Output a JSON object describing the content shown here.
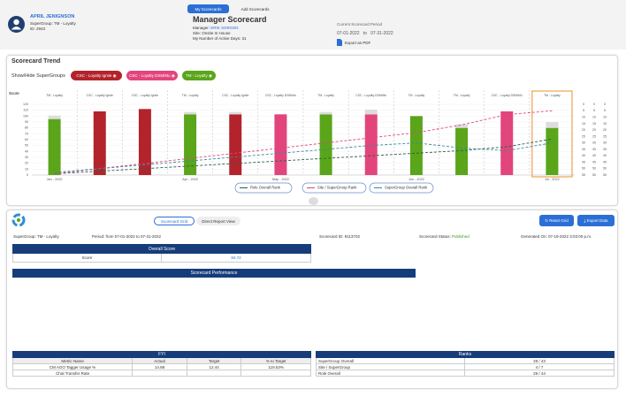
{
  "tabs": [
    "My Scorecards",
    "Add Scorecards"
  ],
  "user": {
    "name": "APRIL JENIGNSON",
    "supergroup": "SuperGroup: TM - Loyalty",
    "id": "ID: 2943"
  },
  "scorecard": {
    "title": "Manager Scorecard",
    "manager_label": "Manager:",
    "manager": "ERIK SORSON",
    "site": "Site: Onsite In House",
    "active_days": "My Number of Active Days: 31"
  },
  "period": {
    "label": "Current Scorecard Period",
    "start": "07-01-2022",
    "to": "to",
    "end": "07-31-2022",
    "export": "Export as PDF"
  },
  "trend": {
    "title": "Scorecard Trend",
    "toggle_label": "Show/Hide SuperGroups",
    "chart": {
      "type": "bar",
      "y_label": "Score",
      "categories": [
        "Jan - 2022",
        null,
        null,
        "Apr - 2022",
        null,
        "May - 2022",
        null,
        null,
        "Jun - 2022",
        null,
        null,
        "Jul - 2022"
      ],
      "ylim": [
        0,
        120
      ],
      "yticks": [
        0,
        10,
        20,
        30,
        40,
        50,
        60,
        70,
        80,
        90,
        100,
        110,
        120
      ],
      "y2lim": [
        0,
        55
      ],
      "y2_reversed": true,
      "y2ticks": [
        0,
        5,
        10,
        15,
        20,
        25,
        30,
        35,
        40,
        45,
        50,
        55
      ],
      "grid": true,
      "series": [
        {
          "name": "CSC - Loyalty Ignite",
          "color": "#b3232c",
          "values": [
            null,
            108,
            112,
            null,
            103,
            null,
            null,
            null,
            null,
            null,
            null,
            null
          ]
        },
        {
          "name": "CSC - Loyalty DSM/Mu",
          "color": "#e2457c",
          "values": [
            null,
            null,
            null,
            null,
            null,
            103,
            null,
            103,
            null,
            null,
            108,
            null
          ]
        },
        {
          "name": "TM - Loyalty",
          "color": "#5aa51a",
          "values": [
            95,
            null,
            null,
            103,
            null,
            null,
            103,
            null,
            100,
            80,
            null,
            80
          ]
        },
        {
          "color": "#dcdcdc",
          "values": [
            6,
            null,
            null,
            4,
            4,
            null,
            4,
            8,
            null,
            6,
            null,
            10
          ]
        },
        {
          "name": "Role Overall Rank",
          "type": "line",
          "axis": "y2",
          "color": "#2e5e4e",
          "values": [
            54,
            52,
            50,
            48,
            46,
            44,
            42,
            40,
            38,
            36,
            33,
            27
          ]
        },
        {
          "name": "Site / SuperGroup Rank",
          "type": "line",
          "axis": "y2",
          "color": "#e2457c",
          "values": [
            54,
            50,
            46,
            42,
            38,
            34,
            30,
            26,
            22,
            16,
            8,
            5
          ]
        },
        {
          "name": "SuperGroup Overall Rank",
          "type": "line",
          "axis": "y2",
          "color": "#3a8a9a",
          "values": [
            53,
            50,
            47,
            44,
            41,
            38,
            35,
            32,
            30,
            34,
            36,
            30
          ]
        }
      ]
    }
  },
  "grid_tabs": [
    "Scorecard Grid",
    "Direct Report View"
  ],
  "actions": [
    "Reset Grid",
    "Export Data"
  ],
  "info": {
    "supergroup": "SuperGroup: TM - Loyalty",
    "period": "Period: from 07-01-2022 to 07-31-2022",
    "scorecard_id": "Scorecard ID: 9113702",
    "status_label": "Scorecard Status:",
    "status": "Published",
    "generated": "Generated On: 07-19-2022 3:03:00 p.m."
  },
  "overall": {
    "title": "Overall Score",
    "label": "Score",
    "value": "84.72"
  },
  "performance": {
    "title": "Scorecard Performance"
  },
  "fyi": {
    "title": "FYI",
    "columns": [
      "Metric Name",
      "Actual",
      "Target",
      "% to Target"
    ],
    "rows": [
      [
        "CM AGO Tagger Usage %",
        "14.88",
        "12.44",
        "119.53%"
      ],
      [
        "Chat Transfer Rate"
      ]
    ]
  },
  "ranks": {
    "title": "Ranks",
    "rows": [
      [
        "SuperGroup Overall",
        "28 / 43"
      ],
      [
        "Site / SuperGroup",
        "4 / 7"
      ],
      [
        "Role Overall",
        "29 / 44"
      ]
    ]
  }
}
